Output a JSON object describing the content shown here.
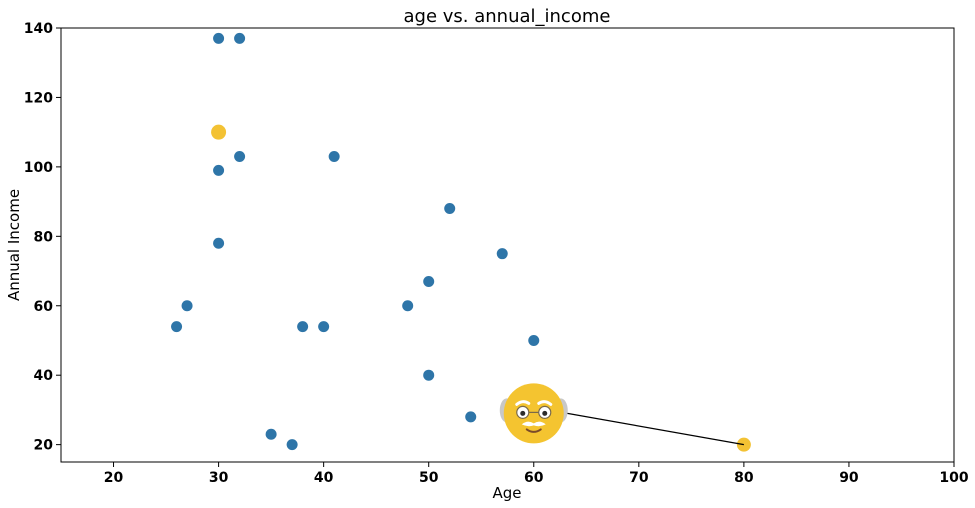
{
  "chart_data": {
    "type": "scatter",
    "title": "age vs. annual_income",
    "xlabel": "Age",
    "ylabel": "Annual Income",
    "xlim": [
      15,
      100
    ],
    "ylim": [
      15,
      140
    ],
    "xticks": [
      20,
      30,
      40,
      50,
      60,
      70,
      80,
      90,
      100
    ],
    "yticks": [
      20,
      40,
      60,
      80,
      100,
      120,
      140
    ],
    "grid": false,
    "series": [
      {
        "color": "#2e75a8",
        "points": [
          {
            "x": 30,
            "y": 137
          },
          {
            "x": 32,
            "y": 137
          },
          {
            "x": 32,
            "y": 103
          },
          {
            "x": 41,
            "y": 103
          },
          {
            "x": 30,
            "y": 99
          },
          {
            "x": 52,
            "y": 88
          },
          {
            "x": 30,
            "y": 78
          },
          {
            "x": 57,
            "y": 75
          },
          {
            "x": 50,
            "y": 67
          },
          {
            "x": 27,
            "y": 60
          },
          {
            "x": 48,
            "y": 60
          },
          {
            "x": 26,
            "y": 54
          },
          {
            "x": 38,
            "y": 54
          },
          {
            "x": 40,
            "y": 54
          },
          {
            "x": 60,
            "y": 50
          },
          {
            "x": 50,
            "y": 40
          },
          {
            "x": 54,
            "y": 28
          },
          {
            "x": 35,
            "y": 23
          },
          {
            "x": 37,
            "y": 20
          }
        ]
      },
      {
        "color": "#f3c234",
        "points": [
          {
            "x": 30,
            "y": 110
          },
          {
            "x": 80,
            "y": 20
          }
        ]
      }
    ],
    "annotations": [
      {
        "type": "image-arrow",
        "icon": "old-man-emoji-icon",
        "image_at": {
          "x": 60,
          "y": 29
        },
        "points_to": {
          "x": 80,
          "y": 20
        }
      }
    ]
  },
  "colors": {
    "blue_point": "#2e75a8",
    "highlight_point": "#f3c234",
    "emoji_face": "#f4c430",
    "emoji_hair": "#c8c8c8"
  }
}
